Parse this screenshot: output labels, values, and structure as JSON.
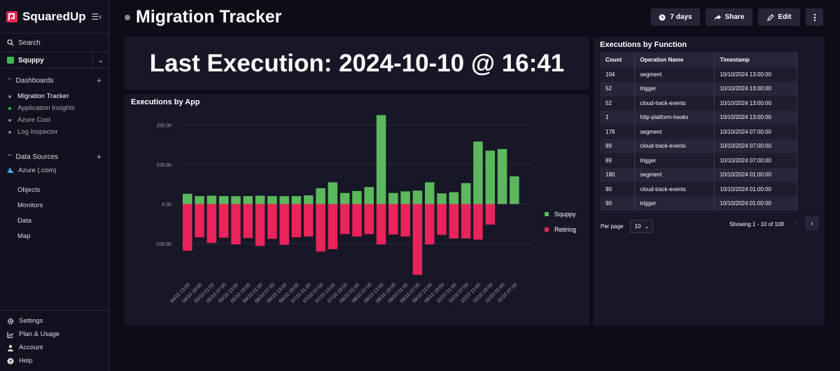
{
  "app": {
    "brand": "SquaredUp",
    "brand_color": "#e8274d"
  },
  "sidebar": {
    "search_label": "Search",
    "workspace": "Squppy",
    "dashboards_label": "Dashboards",
    "dashboards": [
      {
        "label": "Migration Tracker",
        "active": true
      },
      {
        "label": "Application Insights"
      },
      {
        "label": "Azure Cost"
      },
      {
        "label": "Log Inspector"
      }
    ],
    "datasources_label": "Data Sources",
    "datasource": "Azure (.com)",
    "nav": [
      "Objects",
      "Monitors",
      "Data",
      "Map"
    ],
    "bottom": [
      {
        "label": "Settings",
        "icon": "gear-icon"
      },
      {
        "label": "Plan & Usage",
        "icon": "chart-line-icon"
      },
      {
        "label": "Account",
        "icon": "user-icon"
      },
      {
        "label": "Help",
        "icon": "help-icon"
      }
    ]
  },
  "header": {
    "title": "Migration Tracker",
    "timeframe_label": "7 days",
    "share_label": "Share",
    "edit_label": "Edit"
  },
  "last_execution": {
    "text": "Last Execution: 2024-10-10 @ 16:41"
  },
  "exec_app": {
    "title": "Executions by App"
  },
  "chart_data": {
    "type": "bar",
    "stacked": true,
    "categories": [
      "04/10 13:00",
      "04/10 19:00",
      "05/10 01:00",
      "05/10 07:00",
      "05/10 13:00",
      "05/10 19:00",
      "06/10 01:00",
      "06/10 07:00",
      "06/10 13:00",
      "06/10 19:00",
      "07/10 01:00",
      "07/10 07:00",
      "07/10 13:00",
      "07/10 19:00",
      "08/10 01:00",
      "08/10 07:00",
      "08/10 13:00",
      "08/10 19:00",
      "09/10 01:00",
      "09/10 07:00",
      "09/10 13:00",
      "09/10 19:00",
      "10/10 01:00",
      "10/10 07:00",
      "10/10 13:00",
      "10/10 19:00",
      "11/10 01:00",
      "11/10 07:00"
    ],
    "series": [
      {
        "name": "Squppy",
        "color": "#5cb85c",
        "values": [
          26,
          20,
          21,
          20,
          20,
          20,
          21,
          20,
          20,
          20,
          22,
          40,
          55,
          28,
          33,
          43,
          225,
          28,
          32,
          34,
          55,
          27,
          30,
          53,
          158,
          135,
          139,
          70
        ]
      },
      {
        "name": "Retiring",
        "color": "#e8245a",
        "values": [
          -118,
          -84,
          -98,
          -85,
          -102,
          -86,
          -106,
          -88,
          -103,
          -84,
          -82,
          -120,
          -114,
          -76,
          -82,
          -76,
          -102,
          -77,
          -82,
          -179,
          -102,
          -78,
          -87,
          -87,
          -90,
          -52,
          0,
          0
        ]
      }
    ],
    "yticks": [
      "200.00",
      "100.00",
      "0.00",
      "-100.00"
    ],
    "ylim": [
      -190,
      240
    ]
  },
  "exec_fn": {
    "title": "Executions by Function",
    "columns": [
      "Count",
      "Operation Name",
      "Timestamp"
    ],
    "rows": [
      [
        "104",
        "segment",
        "10/10/2024 13:00:00"
      ],
      [
        "52",
        "trigger",
        "10/10/2024 13:00:00"
      ],
      [
        "52",
        "cloud-track-events",
        "10/10/2024 13:00:00"
      ],
      [
        "1",
        "http-platform-hooks",
        "10/10/2024 13:00:00"
      ],
      [
        "178",
        "segment",
        "10/10/2024 07:00:00"
      ],
      [
        "89",
        "cloud-track-events",
        "10/10/2024 07:00:00"
      ],
      [
        "89",
        "trigger",
        "10/10/2024 07:00:00"
      ],
      [
        "180",
        "segment",
        "10/10/2024 01:00:00"
      ],
      [
        "90",
        "cloud-track-events",
        "10/10/2024 01:00:00"
      ],
      [
        "90",
        "trigger",
        "10/10/2024 01:00:00"
      ]
    ],
    "per_page_label": "Per page",
    "per_page_value": "10",
    "showing": "Showing 1 - 10 of 108"
  }
}
